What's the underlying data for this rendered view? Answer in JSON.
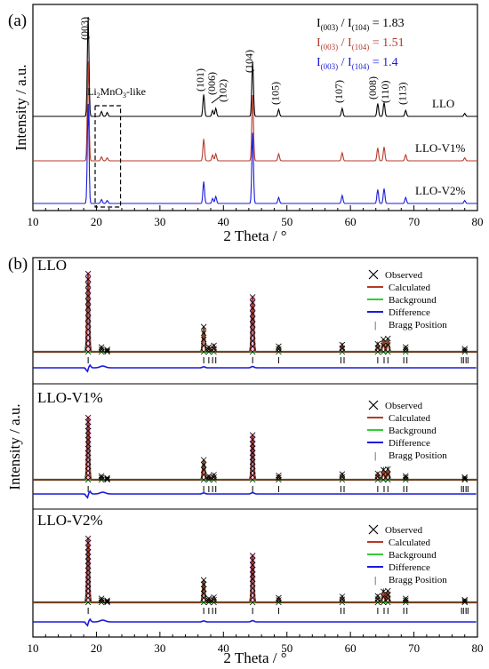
{
  "colors": {
    "black": "#000000",
    "red": "#b5392a",
    "blue": "#1a1adb",
    "green": "#33cc33",
    "pink": "#ff66cc"
  },
  "panel_a": {
    "tag": "(a)",
    "xlabel": "2 Theta / °",
    "ylabel": "Intensity / a.u.",
    "xticks": [
      "10",
      "20",
      "30",
      "40",
      "50",
      "60",
      "70",
      "80"
    ],
    "ratios": [
      {
        "prefix": "I",
        "sub1": "(003)",
        "mid": " / I",
        "sub2": "(104)",
        "val": " = 1.83",
        "color": "#000000"
      },
      {
        "prefix": "I",
        "sub1": "(003)",
        "mid": " / I",
        "sub2": "(104)",
        "val": " = 1.51",
        "color": "#b5392a"
      },
      {
        "prefix": "I",
        "sub1": "(003)",
        "mid": " / I",
        "sub2": "(104)",
        "val": " = 1.4",
        "color": "#1a1adb"
      }
    ],
    "peak_labels": [
      {
        "label": "(003)",
        "x": 18.7
      },
      {
        "label": "(101)",
        "x": 36.9
      },
      {
        "label": "(006)",
        "x": 38.3
      },
      {
        "label": "(102)",
        "x": 38.8
      },
      {
        "label": "(104)",
        "x": 44.6
      },
      {
        "label": "(105)",
        "x": 48.7
      },
      {
        "label": "(107)",
        "x": 58.7
      },
      {
        "label": "(008)",
        "x": 64.3
      },
      {
        "label": "(110)",
        "x": 65.3
      },
      {
        "label": "(113)",
        "x": 68.7
      }
    ],
    "li2mno3": {
      "pre": "Li",
      "s1": "2",
      "mid": "MnO",
      "s2": "3",
      "post": "-like",
      "x_range": [
        19.8,
        23.8
      ]
    },
    "series": [
      {
        "name": "LLO",
        "color": "#000000"
      },
      {
        "name": "LLO-V1%",
        "color": "#b5392a"
      },
      {
        "name": "LLO-V2%",
        "color": "#1a1adb"
      }
    ]
  },
  "panel_b": {
    "tag": "(b)",
    "xlabel": "2 Theta / °",
    "ylabel": "Intensity / a.u.",
    "xticks": [
      "10",
      "20",
      "30",
      "40",
      "50",
      "60",
      "70",
      "80"
    ],
    "legend": {
      "observed": "Observed",
      "calculated": "Calculated",
      "background": "Background",
      "difference": "Difference",
      "bragg": "Bragg Position",
      "bragg_symbol": "|"
    },
    "subpanels": [
      {
        "name": "LLO"
      },
      {
        "name": "LLO-V1%"
      },
      {
        "name": "LLO-V2%"
      }
    ]
  },
  "chart_data": [
    {
      "type": "line",
      "title": "(a)",
      "xlabel": "2 Theta / °",
      "ylabel": "Intensity / a.u.",
      "xlim": [
        10,
        80
      ],
      "grid": false,
      "peaks_2theta": [
        18.7,
        20.8,
        21.7,
        36.9,
        38.3,
        38.8,
        44.6,
        48.7,
        58.7,
        64.3,
        65.3,
        68.7,
        78.0
      ],
      "series": [
        {
          "name": "LLO",
          "relative_heights": [
            1.0,
            0.05,
            0.04,
            0.22,
            0.06,
            0.08,
            0.55,
            0.07,
            0.08,
            0.13,
            0.14,
            0.06,
            0.03
          ]
        },
        {
          "name": "LLO-V1%",
          "relative_heights": [
            1.0,
            0.04,
            0.03,
            0.22,
            0.06,
            0.07,
            0.66,
            0.07,
            0.08,
            0.13,
            0.14,
            0.06,
            0.03
          ]
        },
        {
          "name": "LLO-V2%",
          "relative_heights": [
            1.0,
            0.04,
            0.03,
            0.22,
            0.05,
            0.07,
            0.71,
            0.06,
            0.08,
            0.14,
            0.15,
            0.06,
            0.03
          ]
        }
      ],
      "ratios": {
        "LLO": 1.83,
        "LLO-V1%": 1.51,
        "LLO-V2%": 1.4
      }
    },
    {
      "type": "line",
      "title": "(b)",
      "xlabel": "2 Theta / °",
      "ylabel": "Intensity / a.u.",
      "xlim": [
        10,
        80
      ],
      "grid": false,
      "bragg_positions": [
        18.7,
        36.9,
        37.7,
        38.3,
        38.8,
        44.6,
        48.7,
        58.5,
        59.0,
        64.3,
        65.3,
        65.9,
        68.4,
        68.9,
        77.5,
        77.8,
        78.2,
        78.5
      ],
      "series": [
        {
          "name": "LLO",
          "relative_heights": [
            1.0,
            0.06,
            0.03,
            0.32,
            0.06,
            0.08,
            0.7,
            0.07,
            0.09,
            0.1,
            0.16,
            0.17,
            0.06,
            0.04
          ]
        },
        {
          "name": "LLO-V1%",
          "relative_heights": [
            1.0,
            0.06,
            0.03,
            0.32,
            0.06,
            0.08,
            0.72,
            0.07,
            0.09,
            0.1,
            0.16,
            0.17,
            0.06,
            0.04
          ]
        },
        {
          "name": "LLO-V2%",
          "relative_heights": [
            1.0,
            0.06,
            0.03,
            0.35,
            0.06,
            0.08,
            0.73,
            0.07,
            0.09,
            0.1,
            0.17,
            0.18,
            0.06,
            0.04
          ]
        }
      ]
    }
  ]
}
